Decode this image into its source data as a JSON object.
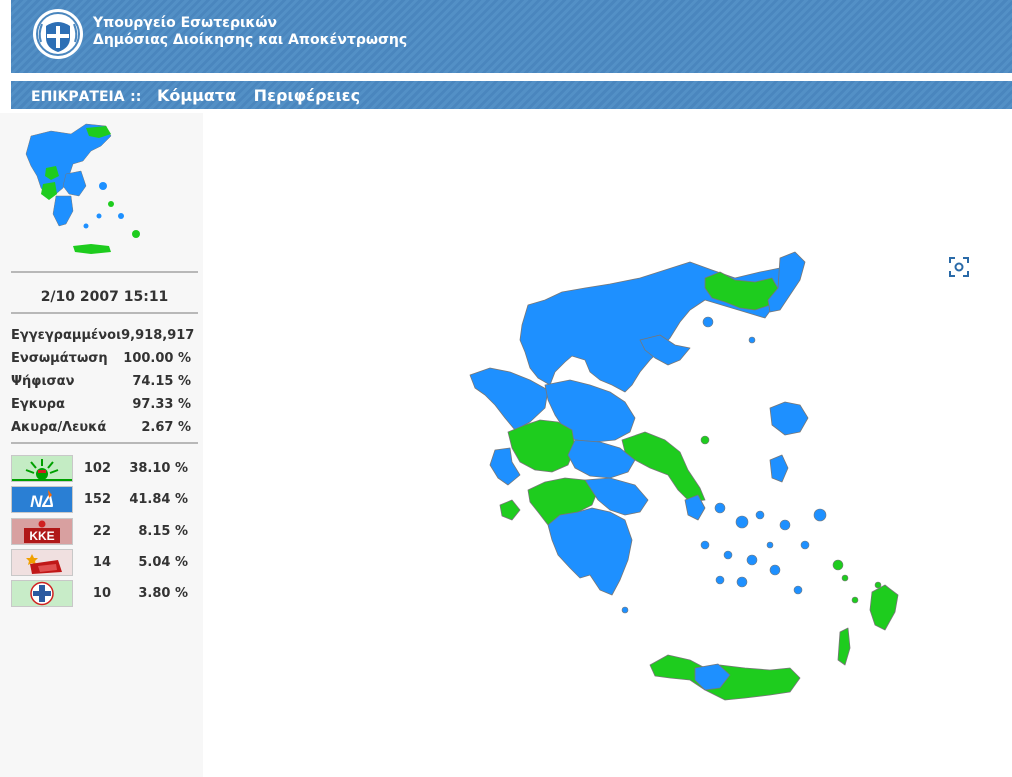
{
  "header": {
    "ministry_line1": "Υπουργείο Εσωτερικών",
    "ministry_line2": "Δημόσιας Διοίκησης και Αποκέντρωσης",
    "logo_icon": "greek-coat-of-arms-icon"
  },
  "nav": {
    "home": "ΕΠΙΚΡΑΤΕΙΑ",
    "separator": "::",
    "parties": "Κόμματα",
    "regions": "Περιφέρειες"
  },
  "results": {
    "datetime": "2/10 2007 15:11",
    "stats": [
      {
        "label": "Εγγεγραμμένοι",
        "value": "9,918,917"
      },
      {
        "label": "Ενσωμάτωση",
        "value": "100.00 %"
      },
      {
        "label": "Ψήφισαν",
        "value": "74.15 %"
      },
      {
        "label": "Εγκυρα",
        "value": "97.33 %"
      },
      {
        "label": "Ακυρα/Λευκά",
        "value": "2.67 %"
      }
    ],
    "parties": [
      {
        "logo_text": "",
        "logo_icon": "sun-logo-icon",
        "seats": "102",
        "percent": "38.10 %",
        "color": "#00b000"
      },
      {
        "logo_text": "ΝΔ",
        "logo_icon": "torch-logo-icon",
        "seats": "152",
        "percent": "41.84 %",
        "color": "#1e90ff"
      },
      {
        "logo_text": "ΚΚΕ",
        "logo_icon": "hammer-sickle-logo-icon",
        "seats": "22",
        "percent": "8.15 %",
        "color": "#c0392b"
      },
      {
        "logo_text": "",
        "logo_icon": "star-flag-logo-icon",
        "seats": "14",
        "percent": "5.04 %",
        "color": "#e67e22"
      },
      {
        "logo_text": "",
        "logo_icon": "cross-emblem-logo-icon",
        "seats": "10",
        "percent": "3.80 %",
        "color": "#2c5aa0"
      }
    ]
  },
  "map": {
    "colors": {
      "blue": "#1e90ff",
      "green": "#1ecc1e",
      "border": "#777777"
    },
    "focus_icon": "focus-icon"
  }
}
